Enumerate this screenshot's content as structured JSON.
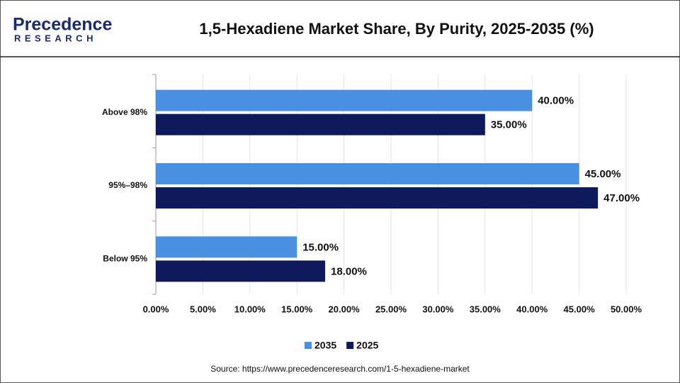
{
  "logo": {
    "name": "Precedence",
    "sub": "RESEARCH"
  },
  "chart_data": {
    "type": "hbar",
    "title": "1,5-Hexadiene Market Share, By Purity, 2025-2035 (%)",
    "categories": [
      "Above 98%",
      "95%–98%",
      "Below 95%"
    ],
    "series": [
      {
        "name": "2035",
        "color": "#4a90e2",
        "values": [
          40,
          45,
          15
        ],
        "value_labels": [
          "40.00%",
          "45.00%",
          "15.00%"
        ]
      },
      {
        "name": "2025",
        "color": "#0e1a5c",
        "values": [
          35,
          47,
          18
        ],
        "value_labels": [
          "35.00%",
          "47.00%",
          "18.00%"
        ]
      }
    ],
    "xlim": [
      0,
      50
    ],
    "xticks": [
      {
        "value": 0,
        "label": "0.00%"
      },
      {
        "value": 5,
        "label": "5.00%"
      },
      {
        "value": 10,
        "label": "10.00%"
      },
      {
        "value": 15,
        "label": "15.00%"
      },
      {
        "value": 20,
        "label": "20.00%"
      },
      {
        "value": 25,
        "label": "25.00%"
      },
      {
        "value": 30,
        "label": "30.00%"
      },
      {
        "value": 35,
        "label": "35.00%"
      },
      {
        "value": 40,
        "label": "40.00%"
      },
      {
        "value": 45,
        "label": "45.00%"
      },
      {
        "value": 50,
        "label": "50.00%"
      }
    ],
    "grid": true,
    "legend": "bottom",
    "source": "Source: https://www.precedenceresearch.com/1-5-hexadiene-market"
  }
}
